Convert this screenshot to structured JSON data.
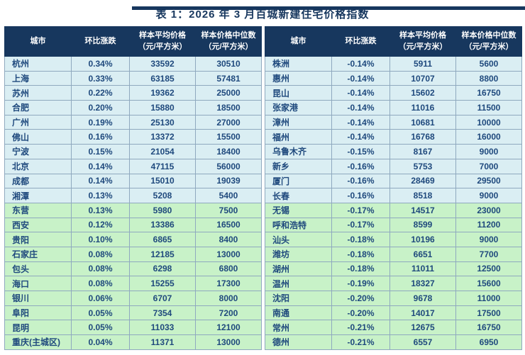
{
  "title": "表 1：2026 年 3 月百城新建住宅价格指数",
  "columns": [
    {
      "line1": "城市",
      "line2": ""
    },
    {
      "line1": "环比涨跌",
      "line2": ""
    },
    {
      "line1": "样本平均价格",
      "line2": "（元/平方米）"
    },
    {
      "line1": "样本价格中位数",
      "line2": "（元/平方米）"
    }
  ],
  "left_table": {
    "rows": [
      {
        "city": "杭州",
        "change": "0.34%",
        "avg": "33592",
        "median": "30510",
        "band": "blue"
      },
      {
        "city": "上海",
        "change": "0.33%",
        "avg": "63185",
        "median": "57481",
        "band": "blue"
      },
      {
        "city": "苏州",
        "change": "0.22%",
        "avg": "19362",
        "median": "25000",
        "band": "blue"
      },
      {
        "city": "合肥",
        "change": "0.20%",
        "avg": "15880",
        "median": "18500",
        "band": "blue"
      },
      {
        "city": "广州",
        "change": "0.19%",
        "avg": "25130",
        "median": "27000",
        "band": "blue"
      },
      {
        "city": "佛山",
        "change": "0.16%",
        "avg": "13372",
        "median": "15500",
        "band": "blue"
      },
      {
        "city": "宁波",
        "change": "0.15%",
        "avg": "21054",
        "median": "18400",
        "band": "blue"
      },
      {
        "city": "北京",
        "change": "0.14%",
        "avg": "47115",
        "median": "56000",
        "band": "blue"
      },
      {
        "city": "成都",
        "change": "0.14%",
        "avg": "15010",
        "median": "19039",
        "band": "blue"
      },
      {
        "city": "湘潭",
        "change": "0.13%",
        "avg": "5208",
        "median": "5400",
        "band": "blue"
      },
      {
        "city": "东营",
        "change": "0.13%",
        "avg": "5980",
        "median": "7500",
        "band": "green"
      },
      {
        "city": "西安",
        "change": "0.12%",
        "avg": "13386",
        "median": "16500",
        "band": "green"
      },
      {
        "city": "贵阳",
        "change": "0.10%",
        "avg": "6865",
        "median": "8400",
        "band": "green"
      },
      {
        "city": "石家庄",
        "change": "0.08%",
        "avg": "12185",
        "median": "13000",
        "band": "green"
      },
      {
        "city": "包头",
        "change": "0.08%",
        "avg": "6298",
        "median": "6800",
        "band": "green"
      },
      {
        "city": "海口",
        "change": "0.08%",
        "avg": "15255",
        "median": "17300",
        "band": "green"
      },
      {
        "city": "银川",
        "change": "0.06%",
        "avg": "6707",
        "median": "8000",
        "band": "green"
      },
      {
        "city": "阜阳",
        "change": "0.05%",
        "avg": "7354",
        "median": "7200",
        "band": "green"
      },
      {
        "city": "昆明",
        "change": "0.05%",
        "avg": "11033",
        "median": "12100",
        "band": "green"
      },
      {
        "city": "重庆(主城区)",
        "change": "0.04%",
        "avg": "11371",
        "median": "13000",
        "band": "green"
      }
    ]
  },
  "right_table": {
    "rows": [
      {
        "city": "株洲",
        "change": "-0.14%",
        "avg": "5911",
        "median": "5600",
        "band": "blue"
      },
      {
        "city": "惠州",
        "change": "-0.14%",
        "avg": "10707",
        "median": "8800",
        "band": "blue"
      },
      {
        "city": "昆山",
        "change": "-0.14%",
        "avg": "15602",
        "median": "16750",
        "band": "blue"
      },
      {
        "city": "张家港",
        "change": "-0.14%",
        "avg": "11016",
        "median": "11500",
        "band": "blue"
      },
      {
        "city": "漳州",
        "change": "-0.14%",
        "avg": "10681",
        "median": "10000",
        "band": "blue"
      },
      {
        "city": "福州",
        "change": "-0.14%",
        "avg": "16768",
        "median": "16000",
        "band": "blue"
      },
      {
        "city": "乌鲁木齐",
        "change": "-0.15%",
        "avg": "8167",
        "median": "9000",
        "band": "blue"
      },
      {
        "city": "新乡",
        "change": "-0.16%",
        "avg": "5753",
        "median": "7000",
        "band": "blue"
      },
      {
        "city": "厦门",
        "change": "-0.16%",
        "avg": "28469",
        "median": "29500",
        "band": "blue"
      },
      {
        "city": "长春",
        "change": "-0.16%",
        "avg": "8518",
        "median": "9000",
        "band": "blue"
      },
      {
        "city": "无锡",
        "change": "-0.17%",
        "avg": "14517",
        "median": "23000",
        "band": "green"
      },
      {
        "city": "呼和浩特",
        "change": "-0.17%",
        "avg": "8599",
        "median": "11200",
        "band": "green"
      },
      {
        "city": "汕头",
        "change": "-0.18%",
        "avg": "10196",
        "median": "9000",
        "band": "green"
      },
      {
        "city": "潍坊",
        "change": "-0.18%",
        "avg": "6651",
        "median": "7700",
        "band": "green"
      },
      {
        "city": "湖州",
        "change": "-0.18%",
        "avg": "11011",
        "median": "12500",
        "band": "green"
      },
      {
        "city": "温州",
        "change": "-0.19%",
        "avg": "18327",
        "median": "15600",
        "band": "green"
      },
      {
        "city": "沈阳",
        "change": "-0.20%",
        "avg": "9678",
        "median": "11000",
        "band": "green"
      },
      {
        "city": "南通",
        "change": "-0.20%",
        "avg": "14017",
        "median": "17500",
        "band": "green"
      },
      {
        "city": "常州",
        "change": "-0.21%",
        "avg": "12675",
        "median": "16750",
        "band": "green"
      },
      {
        "city": "德州",
        "change": "-0.21%",
        "avg": "6557",
        "median": "6950",
        "band": "green"
      }
    ]
  },
  "colors": {
    "header_bg": "#17375E",
    "header_text": "#FFFFFF",
    "row_blue": "#DAEEF3",
    "row_green": "#C8F2C8",
    "cell_text": "#1F497D",
    "title_text": "#17375E",
    "top_bar": "#17375E",
    "grid_line": "#8FA9BF"
  }
}
